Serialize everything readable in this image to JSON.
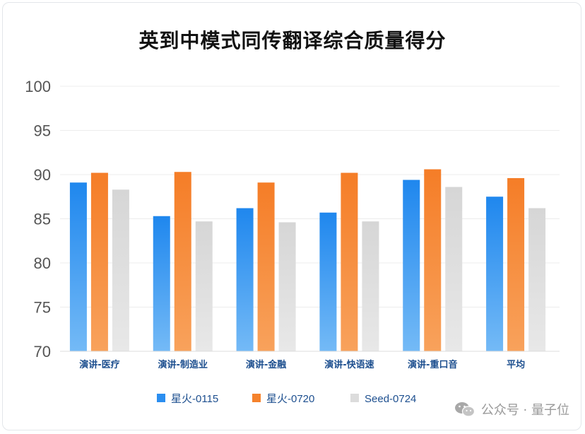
{
  "chart_data": {
    "type": "bar",
    "title": "英到中模式同传翻译综合质量得分",
    "categories": [
      "演讲-医疗",
      "演讲-制造业",
      "演讲-金融",
      "演讲-快语速",
      "演讲-重口音",
      "平均"
    ],
    "series": [
      {
        "name": "星火-0115",
        "values": [
          89.1,
          85.3,
          86.2,
          85.7,
          89.4,
          87.5
        ],
        "color": "#2b8ef0"
      },
      {
        "name": "星火-0720",
        "values": [
          90.2,
          90.3,
          89.1,
          90.2,
          90.6,
          89.6
        ],
        "color": "#f5822c"
      },
      {
        "name": "Seed-0724",
        "values": [
          88.3,
          84.7,
          84.6,
          84.7,
          88.6,
          86.2
        ],
        "color": "#dcdcdc"
      }
    ],
    "ylim": [
      70,
      100
    ],
    "yticks": [
      70,
      75,
      80,
      85,
      90,
      95,
      100
    ],
    "grid": true,
    "legend": "bottom"
  },
  "watermark": {
    "text": "公众号 · 量子位",
    "icon": "wechat-icon"
  }
}
